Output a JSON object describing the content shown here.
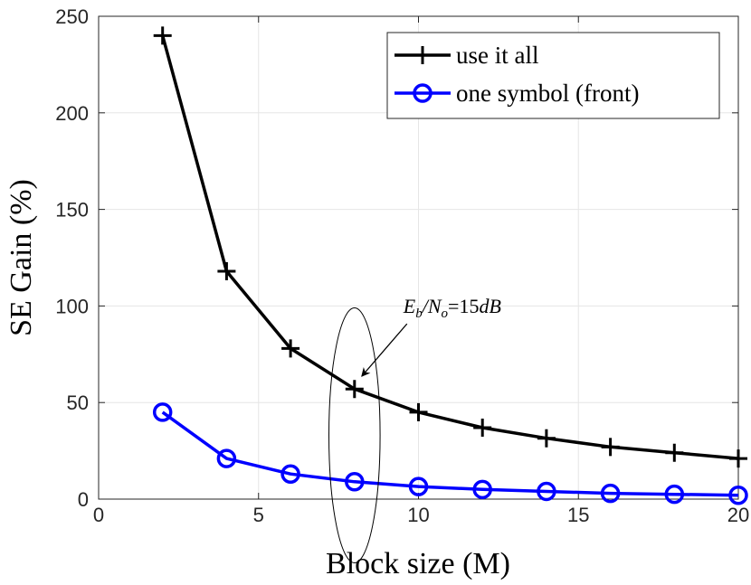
{
  "chart_data": {
    "type": "line",
    "title": "",
    "xlabel": "Block size (M)",
    "ylabel": "SE Gain (%)",
    "xlim": [
      0,
      20
    ],
    "ylim": [
      0,
      250
    ],
    "xticks": [
      0,
      5,
      10,
      15,
      20
    ],
    "yticks": [
      0,
      50,
      100,
      150,
      200,
      250
    ],
    "grid": true,
    "legend_position": "top-right",
    "x": [
      2,
      4,
      6,
      8,
      10,
      12,
      14,
      16,
      18,
      20
    ],
    "series": [
      {
        "name": "use it all",
        "color": "#000000",
        "marker": "plus",
        "values": [
          240,
          118,
          78,
          57,
          45,
          37,
          31.5,
          27,
          24,
          21
        ]
      },
      {
        "name": "one symbol (front)",
        "color": "#0000ff",
        "marker": "circle",
        "values": [
          45,
          21,
          13,
          9,
          6.5,
          5,
          4,
          3,
          2.5,
          2
        ]
      }
    ],
    "annotation": {
      "text": "E_b/N_o=15dB",
      "text_parts": [
        "E",
        "b",
        "/N",
        "o",
        "=15",
        "dB"
      ],
      "target_x": 8,
      "target_y": 58,
      "ellipse_center": [
        8,
        33
      ],
      "ellipse_extent": [
        0.8,
        66
      ]
    }
  }
}
